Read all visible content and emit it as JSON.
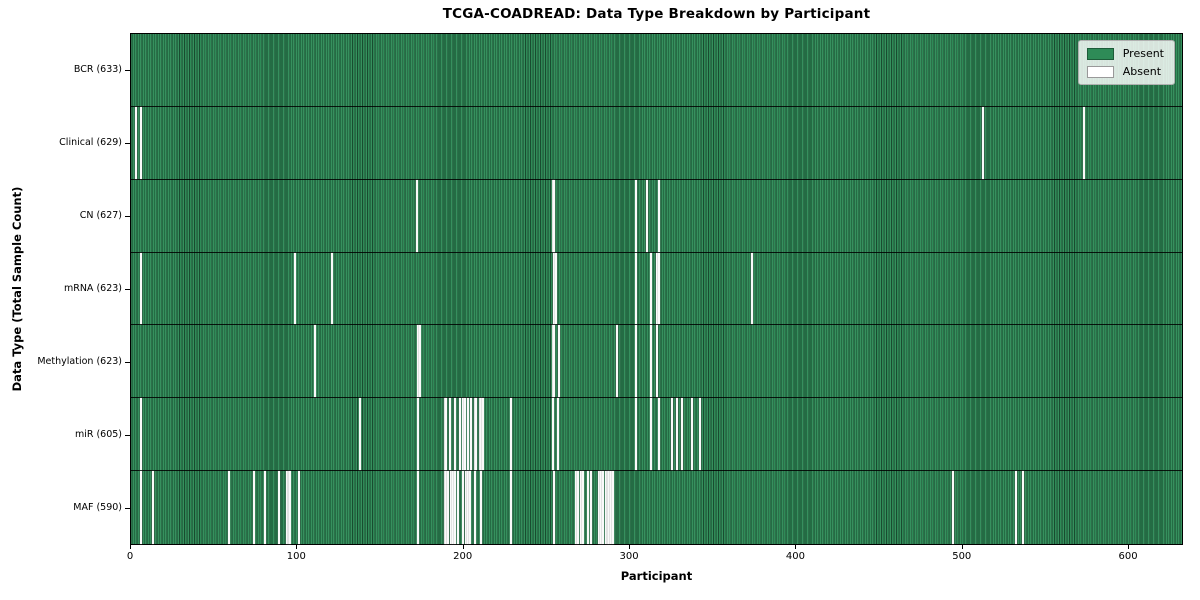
{
  "title": "TCGA-COADREAD: Data Type Breakdown by Participant",
  "axes": {
    "xlabel": "Participant",
    "ylabel": "Data Type (Total Sample Count)",
    "xticks": [
      0,
      100,
      200,
      300,
      400,
      500,
      600
    ]
  },
  "legend": {
    "items": [
      {
        "label": "Present",
        "color": "#2e8b57",
        "border": "#1d5c39"
      },
      {
        "label": "Absent",
        "color": "#ffffff",
        "border": "#999999"
      }
    ]
  },
  "chart_data": {
    "type": "heatmap",
    "title": "TCGA-COADREAD: Data Type Breakdown by Participant",
    "xlabel": "Participant",
    "ylabel": "Data Type (Total Sample Count)",
    "n_participants": 633,
    "x_range": [
      0,
      633
    ],
    "xticks": [
      0,
      100,
      200,
      300,
      400,
      500,
      600
    ],
    "present_color": "#2e8b57",
    "absent_color": "#ffffff",
    "legend_position": "upper right",
    "grid": false,
    "rows": [
      {
        "data_type": "BCR",
        "label": "BCR (633)",
        "present_count": 633,
        "absent_count": 0,
        "absent_participants": []
      },
      {
        "data_type": "Clinical",
        "label": "Clinical (629)",
        "present_count": 629,
        "absent_count": 4,
        "absent_participants": [
          3,
          6,
          513,
          574
        ]
      },
      {
        "data_type": "CN",
        "label": "CN (627)",
        "present_count": 627,
        "absent_count": 6,
        "absent_participants": [
          172,
          254,
          255,
          304,
          311,
          318
        ]
      },
      {
        "data_type": "mRNA",
        "label": "mRNA (623)",
        "present_count": 623,
        "absent_count": 10,
        "absent_participants": [
          6,
          99,
          121,
          255,
          256,
          304,
          313,
          317,
          318,
          374
        ]
      },
      {
        "data_type": "Methylation",
        "label": "Methylation (623)",
        "present_count": 623,
        "absent_count": 10,
        "absent_participants": [
          111,
          173,
          174,
          254,
          255,
          258,
          293,
          304,
          313,
          317
        ]
      },
      {
        "data_type": "miR",
        "label": "miR (605)",
        "present_count": 605,
        "absent_count": 28,
        "absent_participants": [
          6,
          138,
          173,
          189,
          190,
          192,
          195,
          198,
          200,
          201,
          203,
          205,
          207,
          208,
          210,
          211,
          212,
          229,
          254,
          257,
          304,
          313,
          318,
          326,
          329,
          332,
          338,
          343
        ]
      },
      {
        "data_type": "MAF",
        "label": "MAF (590)",
        "present_count": 590,
        "absent_count": 43,
        "absent_participants": [
          6,
          13,
          59,
          74,
          81,
          89,
          94,
          95,
          96,
          101,
          173,
          189,
          190,
          191,
          193,
          194,
          195,
          197,
          200,
          202,
          203,
          204,
          207,
          211,
          229,
          255,
          268,
          269,
          271,
          272,
          275,
          277,
          282,
          283,
          284,
          286,
          287,
          288,
          289,
          290,
          495,
          533,
          537
        ]
      }
    ]
  }
}
